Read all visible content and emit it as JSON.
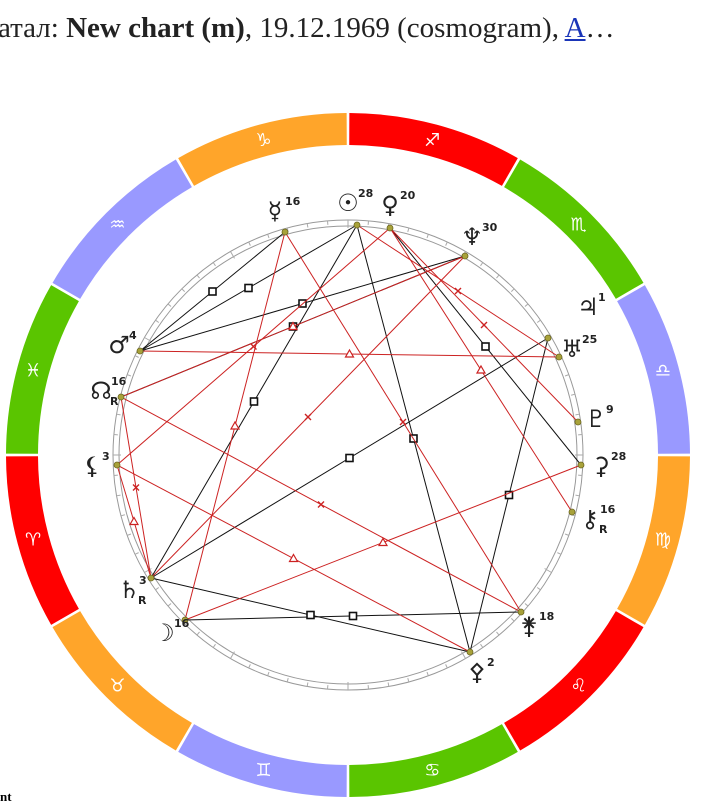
{
  "header": {
    "prefix": "атал: ",
    "name": "New chart (m)",
    "details": ", 19.12.1969 (cosmogram), ",
    "link": "A",
    "ellipsis": "…"
  },
  "zodiac": [
    "♐",
    "♏",
    "♎",
    "♍",
    "♌",
    "♋",
    "♊",
    "♉",
    "♈",
    "♓",
    "♒",
    "♑"
  ],
  "planets": [
    {
      "glyph": "☿",
      "degree": 16
    },
    {
      "glyph": "☉",
      "degree": 28
    },
    {
      "glyph": "♀",
      "degree": 20
    },
    {
      "glyph": "♆",
      "degree": 30
    },
    {
      "glyph": "♃",
      "degree": 1
    },
    {
      "glyph": "♅",
      "degree": 25
    },
    {
      "glyph": "♇",
      "degree": 9
    },
    {
      "glyph": "⚳",
      "degree": 28
    },
    {
      "glyph": "⚷",
      "degree": 16,
      "retrograde": "R"
    },
    {
      "glyph": "⚵",
      "degree": 18
    },
    {
      "glyph": "⚴",
      "degree": 2
    },
    {
      "glyph": "☽",
      "degree": 16
    },
    {
      "glyph": "♄",
      "degree": 3,
      "retrograde": "R"
    },
    {
      "glyph": "⚸",
      "degree": 3
    },
    {
      "glyph": "☊",
      "degree": 16,
      "retrograde": "R"
    },
    {
      "glyph": "♂",
      "degree": 4
    }
  ],
  "footer": "nt"
}
